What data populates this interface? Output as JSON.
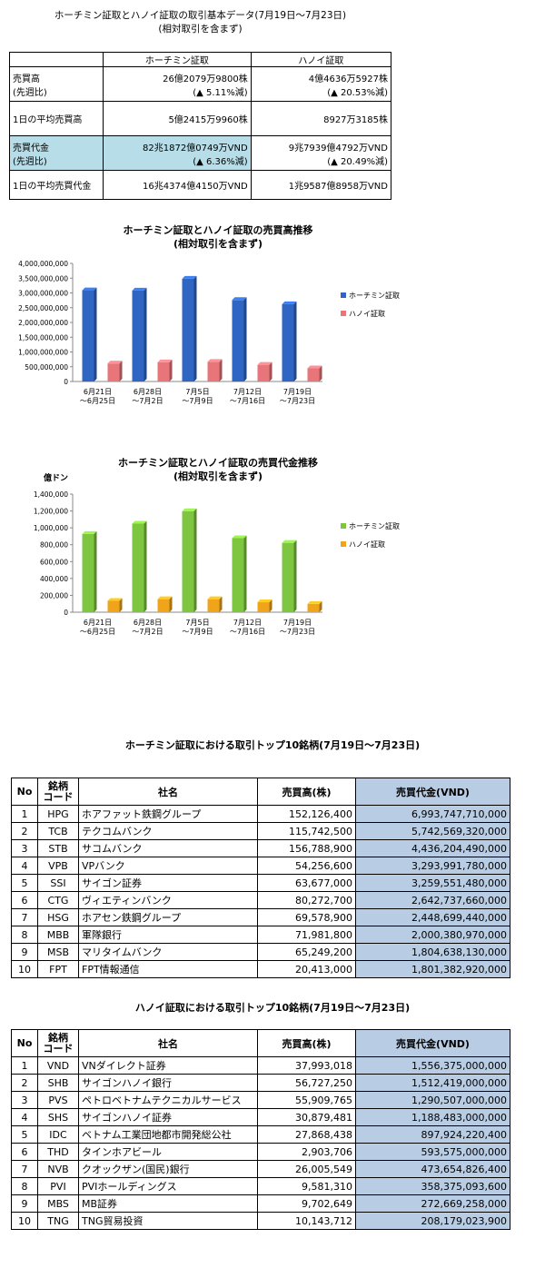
{
  "header": {
    "title": "ホーチミン証取とハノイ証取の取引基本データ(7月19日～7月23日)",
    "subtitle": "(相対取引を含まず)"
  },
  "basic_table": {
    "col1": "ホーチミン証取",
    "col2": "ハノイ証取",
    "rows": [
      {
        "label1": "売買高",
        "label2": "(先週比)",
        "hcm": "26億2079万9800株",
        "hcm_sub": "(▲ 5.11%減)",
        "hn": "4億4636万5927株",
        "hn_sub": "(▲ 20.53%減)"
      },
      {
        "label1": "1日の平均売買高",
        "hcm": "5億2415万9960株",
        "hn": "8927万3185株"
      },
      {
        "label1": "売買代金",
        "label2": "(先週比)",
        "hcm": "82兆1872億0749万VND",
        "hcm_sub": "(▲ 6.36%減)",
        "hn": "9兆7939億4792万VND",
        "hn_sub": "(▲ 20.49%減)"
      },
      {
        "label1": "1日の平均売買代金",
        "hcm": "16兆4374億4150万VND",
        "hn": "1兆9587億8958万VND"
      }
    ]
  },
  "chart1": {
    "title": "ホーチミン証取とハノイ証取の売買高推移",
    "subtitle": "(相対取引を含まず)",
    "yticks": [
      "0",
      "500,000,000",
      "1,000,000,000",
      "1,500,000,000",
      "2,000,000,000",
      "2,500,000,000",
      "3,000,000,000",
      "3,500,000,000",
      "4,000,000,000"
    ]
  },
  "chart2": {
    "title": "ホーチミン証取とハノイ証取の売買代金推移",
    "subtitle": "(相対取引を含まず)",
    "unit": "億ドン",
    "yticks": [
      "0",
      "200,000",
      "400,000",
      "600,000",
      "800,000",
      "1,000,000",
      "1,200,000",
      "1,400,000"
    ]
  },
  "chart_data": [
    {
      "type": "bar",
      "title": "ホーチミン証取とハノイ証取の売買高推移",
      "subtitle": "(相対取引を含まず)",
      "categories": [
        "6月21日\n～6月25日",
        "6月28日\n～7月2日",
        "7月5日\n～7月9日",
        "7月12日\n～7月16日",
        "7月19日\n～7月23日"
      ],
      "series": [
        {
          "name": "ホーチミン証取",
          "color": "#2f66c4",
          "values": [
            3090000000,
            3080000000,
            3480000000,
            2760000000,
            2620000000
          ]
        },
        {
          "name": "ハノイ証取",
          "color": "#e8757a",
          "values": [
            610000000,
            650000000,
            665000000,
            565000000,
            445000000
          ]
        }
      ],
      "ylim": [
        0,
        4000000000
      ],
      "legend": "right",
      "grid": false
    },
    {
      "type": "bar",
      "title": "ホーチミン証取とハノイ証取の売買代金推移",
      "subtitle": "(相対取引を含まず)",
      "ylabel": "億ドン",
      "categories": [
        "6月21日\n～6月25日",
        "6月28日\n～7月2日",
        "7月5日\n～7月9日",
        "7月12日\n～7月16日",
        "7月19日\n～7月23日"
      ],
      "series": [
        {
          "name": "ホーチミン証取",
          "color": "#7ec540",
          "values": [
            928000,
            1050000,
            1198000,
            878000,
            822000
          ]
        },
        {
          "name": "ハノイ証取",
          "color": "#f0a41c",
          "values": [
            135000,
            155000,
            155000,
            118000,
            98000
          ]
        }
      ],
      "ylim": [
        0,
        1400000
      ],
      "legend": "right",
      "grid": false
    }
  ],
  "hcm_top": {
    "title": "ホーチミン証取における取引トップ10銘柄(7月19日～7月23日)",
    "headers": {
      "no": "No",
      "code1": "銘柄",
      "code2": "コード",
      "name": "社名",
      "volume": "売買高(株)",
      "value": "売買代金(VND)"
    },
    "rows": [
      {
        "no": "1",
        "code": "HPG",
        "name": "ホアファット鉄鋼グループ",
        "volume": "152,126,400",
        "value": "6,993,747,710,000"
      },
      {
        "no": "2",
        "code": "TCB",
        "name": "テクコムバンク",
        "volume": "115,742,500",
        "value": "5,742,569,320,000"
      },
      {
        "no": "3",
        "code": "STB",
        "name": "サコムバンク",
        "volume": "156,788,900",
        "value": "4,436,204,490,000"
      },
      {
        "no": "4",
        "code": "VPB",
        "name": "VPバンク",
        "volume": "54,256,600",
        "value": "3,293,991,780,000"
      },
      {
        "no": "5",
        "code": "SSI",
        "name": "サイゴン証券",
        "volume": "63,677,000",
        "value": "3,259,551,480,000"
      },
      {
        "no": "6",
        "code": "CTG",
        "name": "ヴィエティンバンク",
        "volume": "80,272,700",
        "value": "2,642,737,660,000"
      },
      {
        "no": "7",
        "code": "HSG",
        "name": "ホアセン鉄鋼グループ",
        "volume": "69,578,900",
        "value": "2,448,699,440,000"
      },
      {
        "no": "8",
        "code": "MBB",
        "name": "軍隊銀行",
        "volume": "71,981,800",
        "value": "2,000,380,970,000"
      },
      {
        "no": "9",
        "code": "MSB",
        "name": "マリタイムバンク",
        "volume": "65,249,200",
        "value": "1,804,638,130,000"
      },
      {
        "no": "10",
        "code": "FPT",
        "name": "FPT情報通信",
        "volume": "20,413,000",
        "value": "1,801,382,920,000"
      }
    ]
  },
  "hn_top": {
    "title": "ハノイ証取における取引トップ10銘柄(7月19日～7月23日)",
    "headers": {
      "no": "No",
      "code1": "銘柄",
      "code2": "コード",
      "name": "社名",
      "volume": "売買高(株)",
      "value": "売買代金(VND)"
    },
    "rows": [
      {
        "no": "1",
        "code": "VND",
        "name": "VNダイレクト証券",
        "volume": "37,993,018",
        "value": "1,556,375,000,000"
      },
      {
        "no": "2",
        "code": "SHB",
        "name": "サイゴンハノイ銀行",
        "volume": "56,727,250",
        "value": "1,512,419,000,000"
      },
      {
        "no": "3",
        "code": "PVS",
        "name": "ペトロベトナムテクニカルサービス",
        "volume": "55,909,765",
        "value": "1,290,507,000,000"
      },
      {
        "no": "4",
        "code": "SHS",
        "name": "サイゴンハノイ証券",
        "volume": "30,879,481",
        "value": "1,188,483,000,000"
      },
      {
        "no": "5",
        "code": "IDC",
        "name": "ベトナム工業団地都市開発総公社",
        "volume": "27,868,438",
        "value": "897,924,220,400"
      },
      {
        "no": "6",
        "code": "THD",
        "name": "タインホアビール",
        "volume": "2,903,706",
        "value": "593,575,000,000"
      },
      {
        "no": "7",
        "code": "NVB",
        "name": "クオックザン(国民)銀行",
        "volume": "26,005,549",
        "value": "473,654,826,400"
      },
      {
        "no": "8",
        "code": "PVI",
        "name": "PVIホールディングス",
        "volume": "9,581,310",
        "value": "358,375,093,600"
      },
      {
        "no": "9",
        "code": "MBS",
        "name": "MB証券",
        "volume": "9,702,649",
        "value": "272,669,258,000"
      },
      {
        "no": "10",
        "code": "TNG",
        "name": "TNG貿易投資",
        "volume": "10,143,712",
        "value": "208,179,023,900"
      }
    ]
  }
}
